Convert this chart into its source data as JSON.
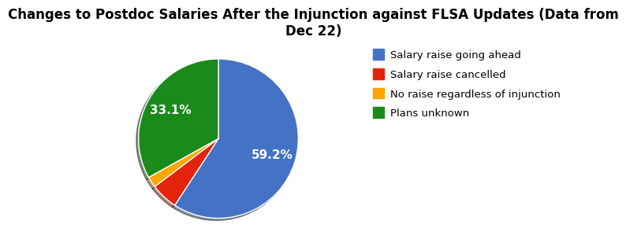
{
  "title": "Changes to Postdoc Salaries After the Injunction against FLSA Updates (Data from\nDec 22)",
  "labels": [
    "Salary raise going ahead",
    "Salary raise cancelled",
    "No raise regardless of injunction",
    "Plans unknown"
  ],
  "values": [
    59.2,
    5.5,
    2.2,
    33.1
  ],
  "colors": [
    "#4472C4",
    "#E3230A",
    "#FFA500",
    "#1A8A1A"
  ],
  "title_fontsize": 12,
  "legend_fontsize": 9.5,
  "autopct_fontsize": 11,
  "startangle": 90,
  "pct_labels": [
    "59.2%",
    "",
    "",
    "33.1%"
  ],
  "shadow_depth": 0.12,
  "background_color": "#ffffff"
}
